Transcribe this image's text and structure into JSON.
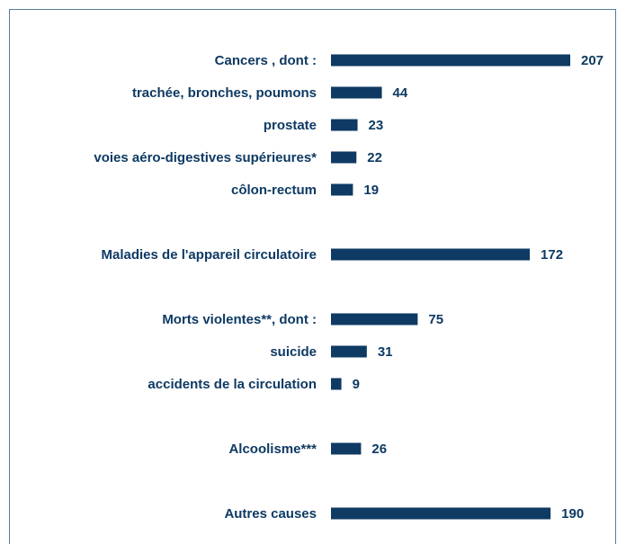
{
  "chart_data": {
    "type": "bar",
    "orientation": "horizontal",
    "categories": [
      "Cancers , dont :",
      "trachée, bronches, poumons",
      "prostate",
      "voies aéro-digestives supérieures*",
      "côlon-rectum",
      null,
      "Maladies de l'appareil circulatoire",
      null,
      "Morts violentes**, dont :",
      "suicide",
      "accidents de la circulation",
      null,
      "Alcoolisme***",
      null,
      "Autres causes"
    ],
    "values": [
      207,
      44,
      23,
      22,
      19,
      null,
      172,
      null,
      75,
      31,
      9,
      null,
      26,
      null,
      190
    ],
    "color": "#0e3a63"
  }
}
